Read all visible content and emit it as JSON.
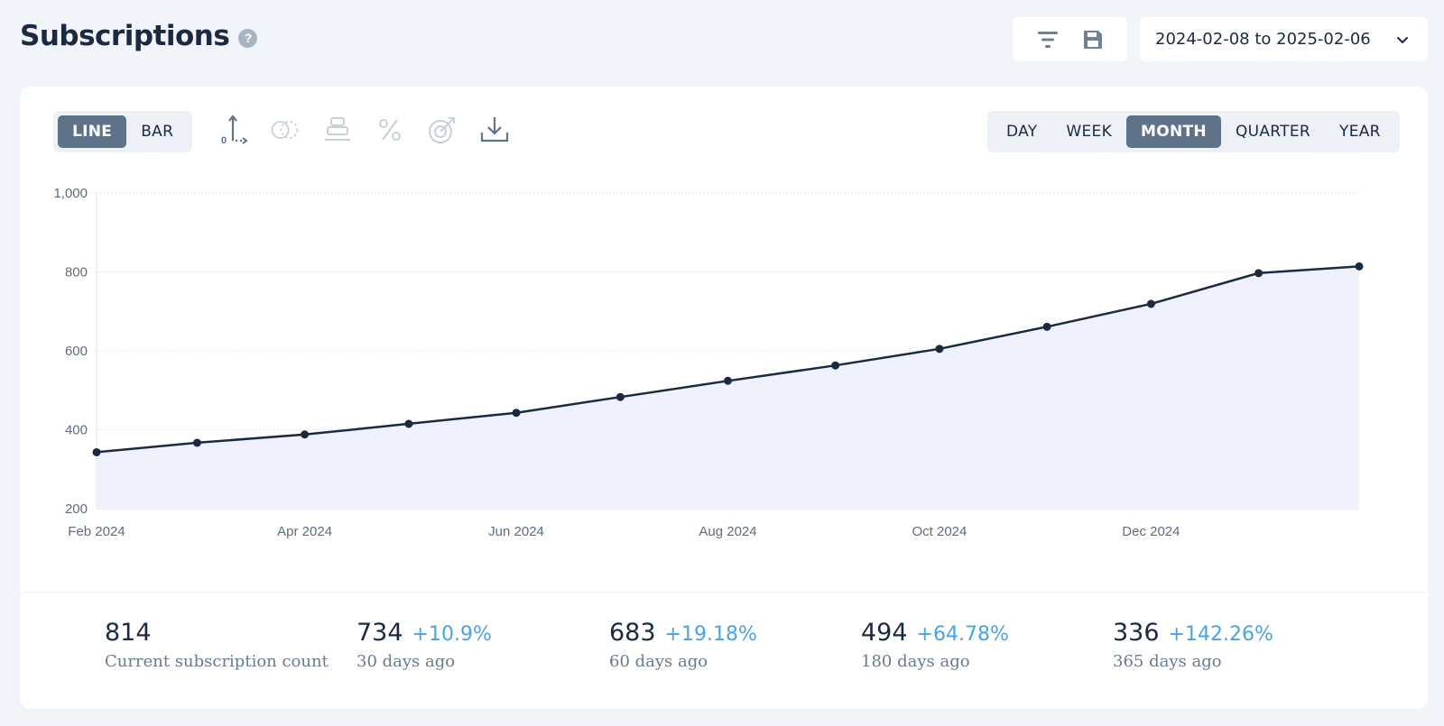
{
  "header": {
    "title": "Subscriptions",
    "help_glyph": "?",
    "date_range": "2024-02-08 to 2025-02-06",
    "icons": [
      "filter-icon",
      "save-icon",
      "chevron-down-icon"
    ]
  },
  "chart_type_toggle": [
    {
      "label": "LINE",
      "active": true
    },
    {
      "label": "BAR",
      "active": false
    }
  ],
  "chart_tools": [
    "axis-icon",
    "compare-icon",
    "stack-icon",
    "percent-icon",
    "target-icon",
    "download-icon"
  ],
  "period_toggle": [
    {
      "label": "DAY",
      "active": false
    },
    {
      "label": "WEEK",
      "active": false
    },
    {
      "label": "MONTH",
      "active": true
    },
    {
      "label": "QUARTER",
      "active": false
    },
    {
      "label": "YEAR",
      "active": false
    }
  ],
  "chart_data": {
    "type": "area",
    "x": [
      "2024-02-08",
      "2024-03-08",
      "2024-04-08",
      "2024-05-08",
      "2024-06-08",
      "2024-07-08",
      "2024-08-08",
      "2024-09-08",
      "2024-10-08",
      "2024-11-08",
      "2024-12-08",
      "2025-01-08",
      "2025-02-06"
    ],
    "values": [
      343,
      367,
      388,
      415,
      443,
      483,
      524,
      563,
      605,
      661,
      719,
      797,
      814
    ],
    "x_ticks": [
      "Feb 2024",
      "Apr 2024",
      "Jun 2024",
      "Aug 2024",
      "Oct 2024",
      "Dec 2024"
    ],
    "y_ticks": [
      "1,000",
      "800",
      "600",
      "400",
      "200"
    ],
    "ylim": [
      200,
      1000
    ],
    "grid": true,
    "line_color": "#1b2a41",
    "fill_color": "#eff2fc"
  },
  "stats": [
    {
      "value": "814",
      "change": "",
      "label": "Current subscription count"
    },
    {
      "value": "734",
      "change": "+10.9%",
      "label": "30 days ago"
    },
    {
      "value": "683",
      "change": "+19.18%",
      "label": "60 days ago"
    },
    {
      "value": "494",
      "change": "+64.78%",
      "label": "180 days ago"
    },
    {
      "value": "336",
      "change": "+142.26%",
      "label": "365 days ago"
    }
  ],
  "colors": {
    "accent_active": "#5e7389",
    "positive_change": "#4aa3e5",
    "background": "#f1f4f9"
  }
}
